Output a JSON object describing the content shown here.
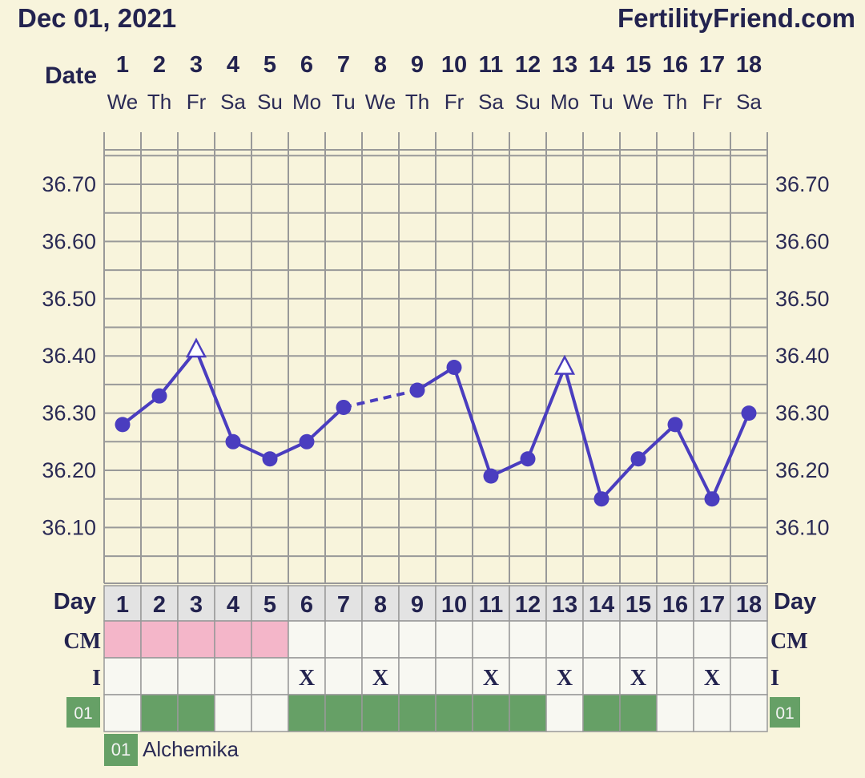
{
  "header": {
    "date": "Dec 01, 2021",
    "site": "FertilityFriend.com"
  },
  "labels": {
    "date": "Date",
    "day": "Day",
    "cm": "CM",
    "i": "I",
    "row_code": "01"
  },
  "colors": {
    "line": "#4a3dbf",
    "cm": "#f4b6c9",
    "row": "#66a066",
    "grid": "#999999"
  },
  "legend": {
    "code": "01",
    "name": "Alchemika"
  },
  "chart_data": {
    "type": "line",
    "x": [
      1,
      2,
      3,
      4,
      5,
      6,
      7,
      8,
      9,
      10,
      11,
      12,
      13,
      14,
      15,
      16,
      17,
      18
    ],
    "weekdays": [
      "We",
      "Th",
      "Fr",
      "Sa",
      "Su",
      "Mo",
      "Tu",
      "We",
      "Th",
      "Fr",
      "Sa",
      "Su",
      "Mo",
      "Tu",
      "We",
      "Th",
      "Fr",
      "Sa"
    ],
    "ylim": [
      35.99,
      36.8
    ],
    "yticks": [
      "36.10",
      "36.20",
      "36.30",
      "36.40",
      "36.50",
      "36.60",
      "36.70"
    ],
    "series": [
      {
        "values": [
          36.28,
          36.33,
          36.41,
          36.25,
          36.22,
          36.25,
          36.31,
          null,
          36.34,
          36.38,
          36.19,
          36.22,
          36.38,
          36.15,
          36.22,
          36.28,
          36.15,
          36.3
        ],
        "triangle_days": [
          3,
          13
        ],
        "dashed_segment": [
          7,
          9
        ]
      }
    ],
    "cm": [
      "pink",
      "pink",
      "pink",
      "pink",
      "pink",
      "",
      "",
      "",
      "",
      "",
      "",
      "",
      "",
      "",
      "",
      "",
      "",
      ""
    ],
    "intercourse": [
      "",
      "",
      "",
      "",
      "",
      "X",
      "",
      "X",
      "",
      "",
      "X",
      "",
      "X",
      "",
      "X",
      "",
      "X",
      ""
    ],
    "code_row": [
      false,
      true,
      true,
      false,
      false,
      true,
      true,
      true,
      true,
      true,
      true,
      true,
      false,
      true,
      true,
      false,
      false,
      false
    ]
  }
}
